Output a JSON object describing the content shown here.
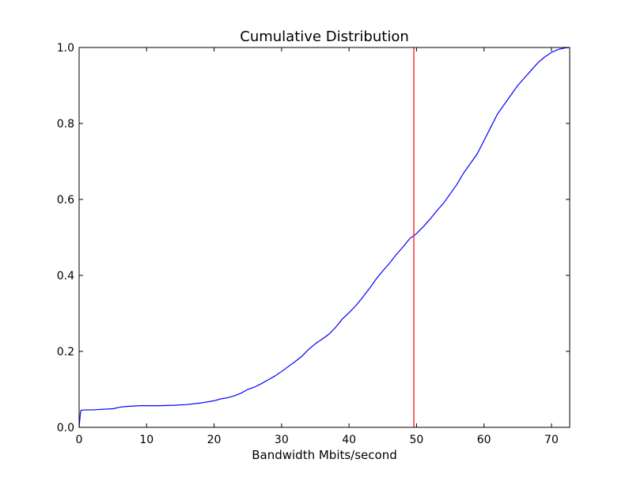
{
  "chart_data": {
    "type": "line",
    "title": "Cumulative Distribution",
    "xlabel": "Bandwidth Mbits/second",
    "ylabel": "",
    "xlim": [
      0,
      72.7
    ],
    "ylim": [
      0.0,
      1.0
    ],
    "xticks": [
      0,
      10,
      20,
      30,
      40,
      50,
      60,
      70
    ],
    "xtick_labels": [
      "0",
      "10",
      "20",
      "30",
      "40",
      "50",
      "60",
      "70"
    ],
    "yticks": [
      0.0,
      0.2,
      0.4,
      0.6,
      0.8,
      1.0
    ],
    "ytick_labels": [
      "0.0",
      "0.2",
      "0.4",
      "0.6",
      "0.8",
      "1.0"
    ],
    "grid": false,
    "legend": false,
    "series": [
      {
        "color": "#0000ff",
        "x": [
          0,
          0.1,
          0.2,
          0.3,
          1,
          2,
          3,
          4,
          5,
          6,
          7,
          8,
          9,
          10,
          12,
          14,
          16,
          18,
          20,
          21,
          22,
          23,
          24,
          25,
          26,
          27,
          28,
          29,
          30,
          31,
          32,
          33,
          34,
          35,
          36,
          37,
          38,
          39,
          40,
          41,
          42,
          43,
          44,
          45,
          46,
          47,
          48,
          49,
          50,
          51,
          52,
          53,
          54,
          55,
          56,
          57,
          58,
          59,
          60,
          61,
          62,
          63,
          64,
          65,
          66,
          67,
          68,
          69,
          70,
          71,
          72,
          72.7
        ],
        "y": [
          0.0,
          0.02,
          0.04,
          0.045,
          0.046,
          0.046,
          0.047,
          0.048,
          0.049,
          0.053,
          0.055,
          0.056,
          0.057,
          0.057,
          0.057,
          0.058,
          0.06,
          0.064,
          0.07,
          0.075,
          0.078,
          0.083,
          0.09,
          0.1,
          0.106,
          0.115,
          0.125,
          0.135,
          0.147,
          0.16,
          0.173,
          0.187,
          0.205,
          0.22,
          0.232,
          0.245,
          0.263,
          0.285,
          0.302,
          0.32,
          0.342,
          0.365,
          0.39,
          0.412,
          0.432,
          0.455,
          0.475,
          0.497,
          0.51,
          0.528,
          0.548,
          0.57,
          0.59,
          0.615,
          0.64,
          0.67,
          0.695,
          0.72,
          0.755,
          0.79,
          0.825,
          0.85,
          0.875,
          0.9,
          0.92,
          0.94,
          0.96,
          0.975,
          0.987,
          0.995,
          0.999,
          1.0
        ]
      }
    ],
    "reference_lines": [
      {
        "orientation": "vertical",
        "x": 49.6,
        "color": "#ff0000"
      }
    ]
  }
}
